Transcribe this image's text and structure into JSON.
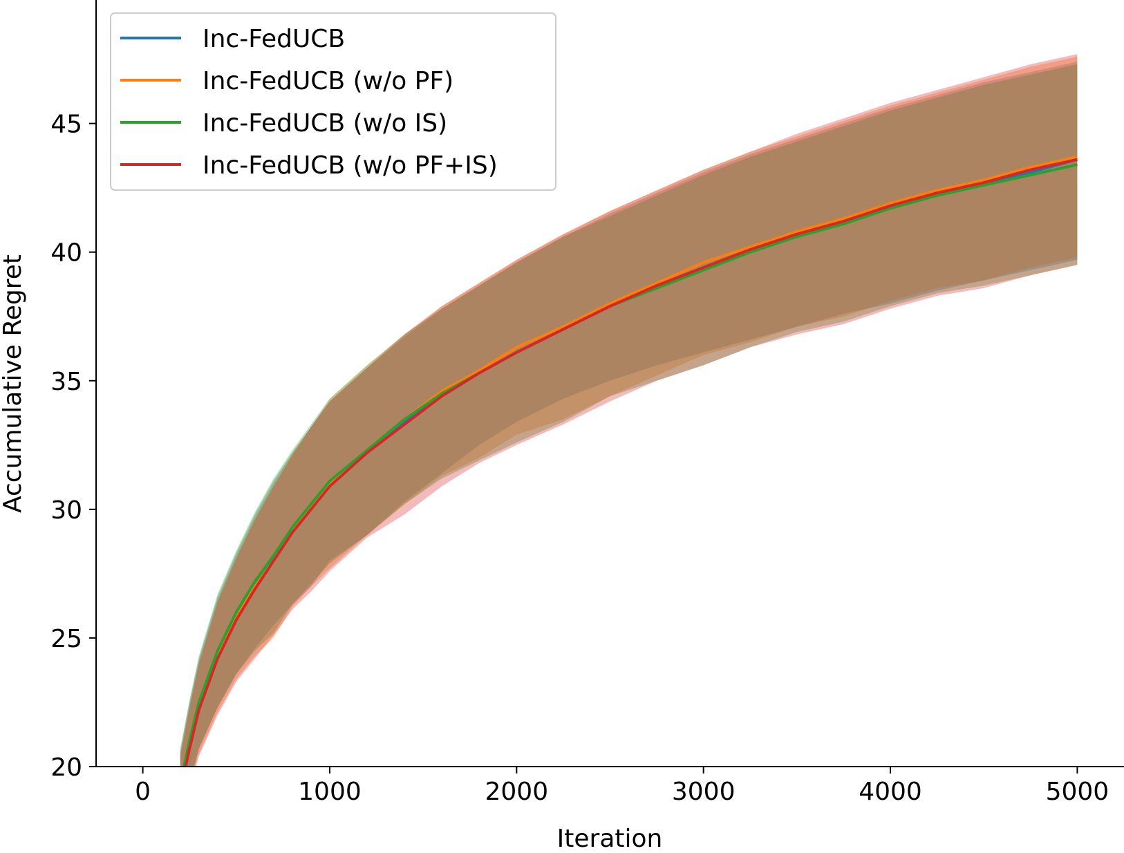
{
  "chart_data": {
    "type": "line",
    "title": "",
    "xlabel": "Iteration",
    "ylabel": "Accumulative Regret",
    "xlim": [
      -250,
      5250
    ],
    "ylim": [
      20,
      49.8
    ],
    "xticks": [
      0,
      1000,
      2000,
      3000,
      4000,
      5000
    ],
    "yticks": [
      20,
      25,
      30,
      35,
      40,
      45
    ],
    "xtick_labels": [
      "0",
      "1000",
      "2000",
      "3000",
      "4000",
      "5000"
    ],
    "ytick_labels": [
      "20",
      "25",
      "30",
      "35",
      "40",
      "45"
    ],
    "grid": false,
    "legend_position": "top-left",
    "x": [
      200,
      250,
      300,
      400,
      500,
      600,
      700,
      800,
      900,
      1000,
      1200,
      1400,
      1600,
      1800,
      2000,
      2250,
      2500,
      2750,
      3000,
      3250,
      3500,
      3750,
      4000,
      4250,
      4500,
      4750,
      5000
    ],
    "series": [
      {
        "name": "Inc-FedUCB",
        "color": "#1f77b4",
        "values": [
          19.2,
          20.9,
          22.4,
          24.4,
          25.9,
          27.1,
          28.1,
          29.2,
          30.1,
          30.9,
          32.2,
          33.4,
          34.4,
          35.3,
          36.1,
          37.0,
          37.9,
          38.7,
          39.4,
          40.1,
          40.7,
          41.2,
          41.8,
          42.3,
          42.7,
          43.1,
          43.6
        ],
        "upper": [
          20.6,
          22.5,
          24.2,
          26.6,
          28.3,
          29.8,
          31.1,
          32.2,
          33.2,
          34.2,
          35.5,
          36.7,
          37.8,
          38.7,
          39.6,
          40.6,
          41.5,
          42.3,
          43.1,
          43.8,
          44.4,
          45.0,
          45.6,
          46.1,
          46.6,
          47.0,
          47.4
        ],
        "lower": [
          17.8,
          19.3,
          20.7,
          22.3,
          23.6,
          24.6,
          25.5,
          26.3,
          27.0,
          28.0,
          29.0,
          30.3,
          31.4,
          32.5,
          33.4,
          34.3,
          35.0,
          35.6,
          36.1,
          36.6,
          37.1,
          37.6,
          38.0,
          38.5,
          38.9,
          39.3,
          39.7
        ]
      },
      {
        "name": "Inc-FedUCB (w/o PF)",
        "color": "#ff7f0e",
        "values": [
          19.1,
          20.8,
          22.3,
          24.3,
          25.8,
          27.0,
          28.0,
          29.2,
          30.1,
          31.0,
          32.3,
          33.5,
          34.6,
          35.4,
          36.3,
          37.1,
          38.0,
          38.8,
          39.6,
          40.2,
          40.8,
          41.3,
          41.9,
          42.4,
          42.8,
          43.3,
          43.7
        ],
        "upper": [
          20.5,
          22.4,
          24.1,
          26.5,
          28.2,
          29.7,
          31.0,
          32.2,
          33.2,
          34.3,
          35.6,
          36.8,
          37.9,
          38.8,
          39.7,
          40.7,
          41.6,
          42.4,
          43.2,
          43.9,
          44.5,
          45.1,
          45.7,
          46.2,
          46.7,
          47.2,
          47.6
        ],
        "lower": [
          17.7,
          19.2,
          20.5,
          22.1,
          23.4,
          24.3,
          25.0,
          26.2,
          27.0,
          27.7,
          29.0,
          30.2,
          31.3,
          32.0,
          32.9,
          33.5,
          34.4,
          35.2,
          36.0,
          36.5,
          37.1,
          37.5,
          38.1,
          38.6,
          38.9,
          39.4,
          39.8
        ]
      },
      {
        "name": "Inc-FedUCB (w/o IS)",
        "color": "#2ca02c",
        "values": [
          19.3,
          21.0,
          22.5,
          24.5,
          26.0,
          27.2,
          28.2,
          29.3,
          30.2,
          31.1,
          32.3,
          33.5,
          34.5,
          35.3,
          36.1,
          37.0,
          37.9,
          38.6,
          39.3,
          40.0,
          40.6,
          41.1,
          41.7,
          42.2,
          42.6,
          43.0,
          43.4
        ],
        "upper": [
          20.7,
          22.6,
          24.3,
          26.7,
          28.4,
          29.9,
          31.2,
          32.3,
          33.3,
          34.3,
          35.6,
          36.8,
          37.8,
          38.7,
          39.6,
          40.6,
          41.4,
          42.2,
          43.0,
          43.7,
          44.3,
          44.9,
          45.5,
          46.0,
          46.5,
          46.9,
          47.3
        ],
        "lower": [
          17.9,
          19.4,
          20.7,
          22.3,
          23.6,
          24.5,
          25.2,
          26.3,
          27.1,
          27.9,
          29.0,
          30.2,
          31.2,
          31.9,
          32.6,
          33.4,
          34.4,
          35.0,
          35.6,
          36.3,
          36.9,
          37.3,
          37.9,
          38.4,
          38.7,
          39.1,
          39.5
        ]
      },
      {
        "name": "Inc-FedUCB (w/o PF+IS)",
        "color": "#d62728",
        "values": [
          19.0,
          20.7,
          22.2,
          24.2,
          25.7,
          26.9,
          28.0,
          29.1,
          30.0,
          30.9,
          32.2,
          33.3,
          34.4,
          35.3,
          36.1,
          37.0,
          37.9,
          38.7,
          39.4,
          40.1,
          40.7,
          41.2,
          41.8,
          42.3,
          42.7,
          43.2,
          43.6
        ],
        "upper": [
          20.4,
          22.3,
          24.0,
          26.4,
          28.1,
          29.6,
          30.9,
          32.1,
          33.2,
          34.2,
          35.5,
          36.8,
          37.9,
          38.8,
          39.7,
          40.7,
          41.6,
          42.4,
          43.2,
          43.9,
          44.6,
          45.2,
          45.8,
          46.3,
          46.8,
          47.3,
          47.7
        ],
        "lower": [
          17.6,
          19.1,
          20.4,
          22.0,
          23.3,
          24.2,
          25.1,
          26.1,
          26.8,
          27.6,
          28.9,
          29.8,
          30.9,
          31.8,
          32.5,
          33.3,
          34.2,
          35.0,
          35.6,
          36.3,
          36.8,
          37.2,
          37.8,
          38.3,
          38.6,
          39.1,
          39.5
        ]
      }
    ]
  }
}
